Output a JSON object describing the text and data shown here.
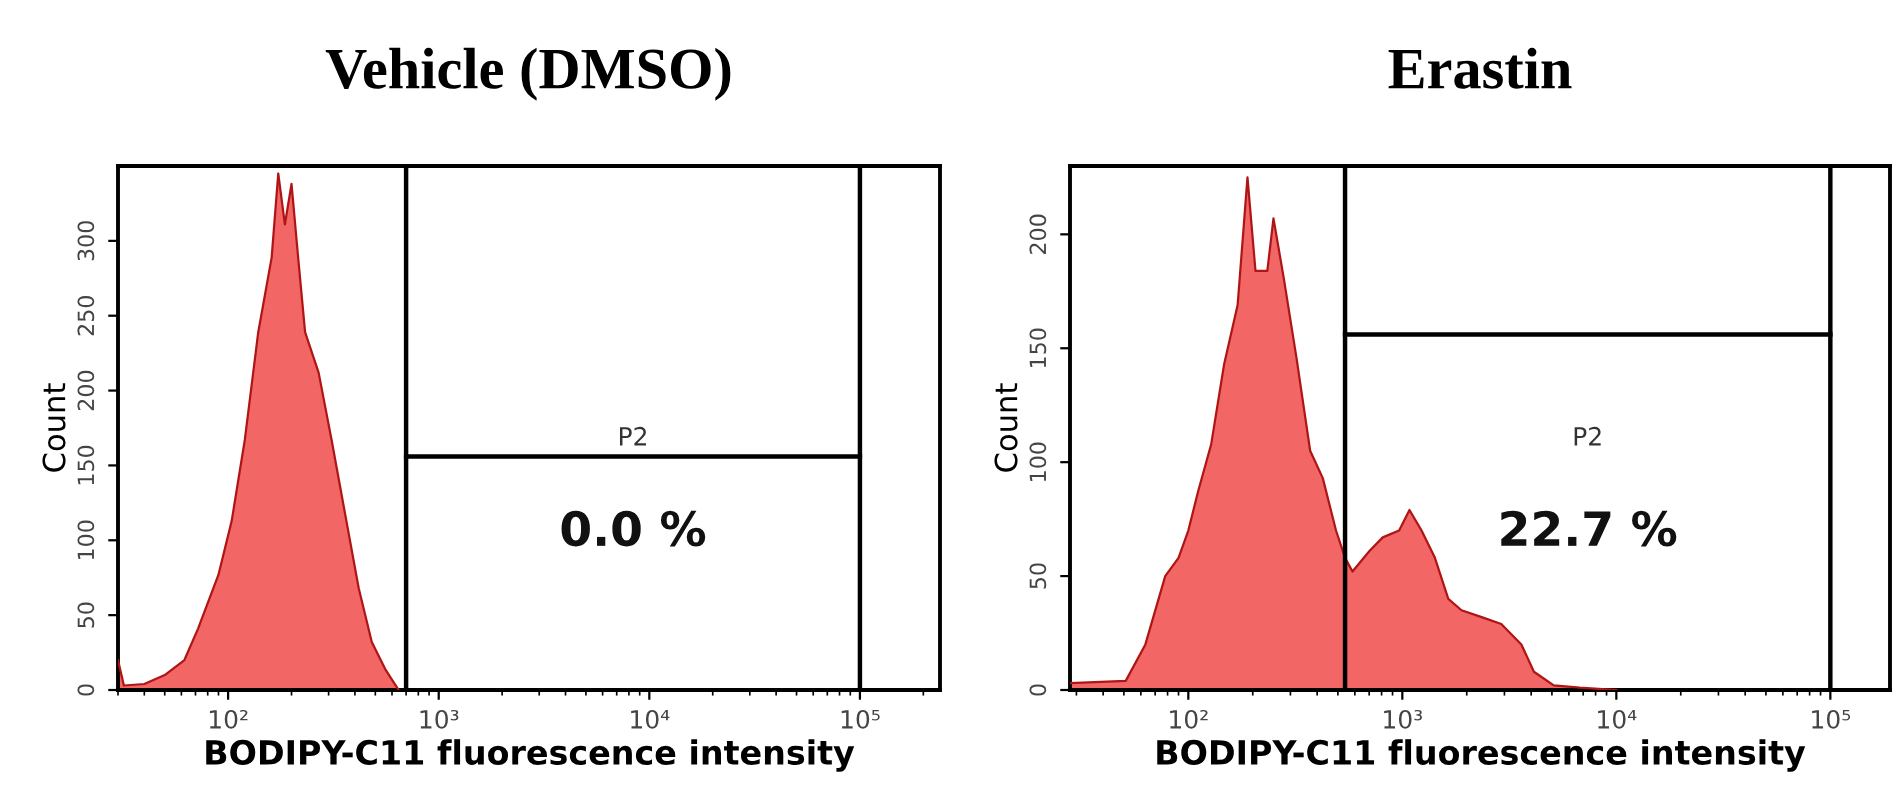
{
  "chart_data": [
    {
      "type": "area",
      "title": "Vehicle (DMSO)",
      "xlabel": "BODIPY-C11 fluorescence intensity",
      "ylabel": "Count",
      "log": "x",
      "xlim": [
        30,
        240000
      ],
      "xticks": [
        {
          "value": 100,
          "label": "10²"
        },
        {
          "value": 1000,
          "label": "10³"
        },
        {
          "value": 10000,
          "label": "10⁴"
        },
        {
          "value": 100000,
          "label": "10⁵"
        }
      ],
      "ylim": [
        0,
        350
      ],
      "yticks": [
        0,
        50,
        100,
        150,
        200,
        250,
        300
      ],
      "grid": false,
      "legend": false,
      "series": [
        {
          "color": "#f26666",
          "x": [
            30,
            32,
            40,
            50,
            62,
            72,
            90,
            104,
            120,
            139,
            161,
            173,
            186,
            200,
            215,
            232,
            269,
            310,
            360,
            417,
            481,
            557,
            645
          ],
          "values": [
            20,
            3,
            4,
            10,
            20,
            41,
            77,
            113,
            167,
            239,
            289,
            345,
            311,
            338,
            289,
            239,
            212,
            167,
            117,
            68,
            32,
            14,
            0
          ]
        },
        {
          "type": "line",
          "color": "#000000",
          "x": [
            700,
            100000
          ],
          "values": [
            156,
            156
          ]
        }
      ],
      "ref_lines": [
        {
          "axis": "x",
          "value": 700,
          "color": "#000000"
        },
        {
          "axis": "x",
          "value": 100000,
          "color": "#000000"
        }
      ],
      "annotations": [
        "P2",
        "0.0 %"
      ]
    },
    {
      "type": "area",
      "title": "Erastin",
      "xlabel": "BODIPY-C11 fluorescence intensity",
      "ylabel": "Count",
      "log": "x",
      "xlim": [
        28,
        190000
      ],
      "xticks": [
        {
          "value": 100,
          "label": "10²"
        },
        {
          "value": 1000,
          "label": "10³"
        },
        {
          "value": 10000,
          "label": "10⁴"
        },
        {
          "value": 100000,
          "label": "10⁵"
        }
      ],
      "ylim": [
        0,
        230
      ],
      "yticks": [
        0,
        50,
        100,
        150,
        200
      ],
      "grid": false,
      "legend": false,
      "series": [
        {
          "color": "#f26666",
          "x": [
            28,
            51,
            63,
            78,
            90,
            100,
            111,
            128,
            147,
            170,
            189,
            206,
            234,
            250,
            279,
            320,
            371,
            425,
            490,
            540,
            585,
            702,
            810,
            966,
            1080,
            1230,
            1420,
            1640,
            1890,
            2350,
            2900,
            3600,
            4120,
            5100,
            6750,
            10000
          ],
          "values": [
            3,
            4,
            20,
            50,
            58,
            70,
            87,
            108,
            143,
            169,
            225,
            184,
            184,
            207,
            181,
            146,
            105,
            93,
            70,
            58,
            52,
            61,
            67,
            70,
            79,
            70,
            58,
            40,
            35,
            32,
            29,
            20,
            8,
            2,
            1,
            0
          ]
        },
        {
          "type": "line",
          "color": "#000000",
          "x": [
            540,
            100000
          ],
          "values": [
            156,
            156
          ]
        }
      ],
      "ref_lines": [
        {
          "axis": "x",
          "value": 540,
          "color": "#000000"
        },
        {
          "axis": "x",
          "value": 100000,
          "color": "#000000"
        }
      ],
      "annotations": [
        "P2",
        "22.7 %"
      ]
    }
  ]
}
